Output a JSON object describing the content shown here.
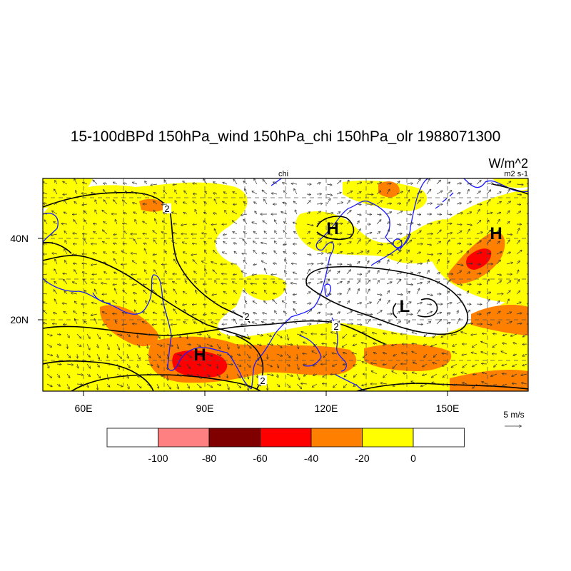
{
  "title": "15-100dBPd 150hPa_wind 150hPa_chi 150hPa_olr 1988071300",
  "units": "W/m^2",
  "chi_label": "chi",
  "chi_units": "m2 s-1",
  "lon_ticks": [
    "60E",
    "90E",
    "120E",
    "150E"
  ],
  "lat_ticks": [
    "40N",
    "20N"
  ],
  "vector_ref": "5 m/s",
  "contour_labels": [
    "2",
    "2",
    "2",
    "2"
  ],
  "pressure_centers": [
    "H",
    "H",
    "H",
    "L"
  ],
  "colorbar": {
    "labels": [
      "-100",
      "-80",
      "-60",
      "-40",
      "-20",
      "0"
    ],
    "colors": [
      "#ffffff",
      "#ff8080",
      "#800000",
      "#ff0000",
      "#ff8000",
      "#ffff00",
      "#ffffff"
    ]
  },
  "colors": {
    "coast": "#1a1aff",
    "contour": "#000000",
    "yellow": "#ffff00",
    "orange": "#ff8000",
    "red": "#ff0000"
  }
}
